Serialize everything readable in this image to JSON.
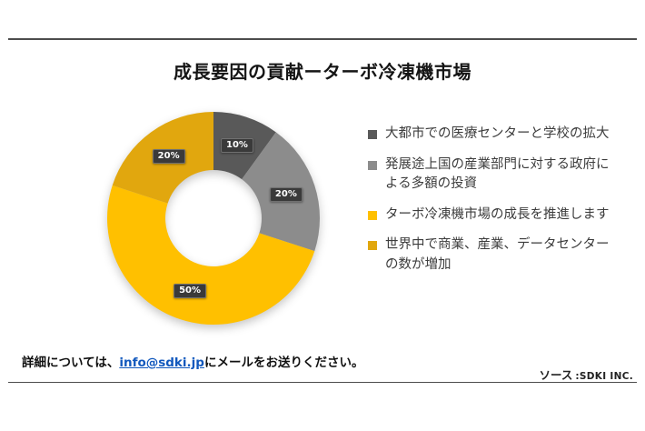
{
  "title": "成長要因の貢献ーターボ冷凍機市場",
  "chart_data": {
    "type": "pie",
    "subtype": "donut",
    "title": "成長要因の貢献ーターボ冷凍機市場",
    "labels": [
      "大都市での医療センターと学校の拡大",
      "発展途上国の産業部門に対する政府による多額の投資",
      "ターボ冷凍機市場の成長を推進します",
      "世界中で商業、産業、データセンターの数が増加"
    ],
    "values": [
      10,
      20,
      50,
      20
    ],
    "value_labels": [
      "10%",
      "20%",
      "50%",
      "20%"
    ],
    "colors": [
      "#595959",
      "#8C8C8C",
      "#FFC000",
      "#E1A70E"
    ],
    "start_angle_deg": 0,
    "direction": "clockwise",
    "donut_hole_ratio": 0.45,
    "legend_position": "right",
    "label_badge_color": "#3a3a3a",
    "label_text_color": "#ffffff"
  },
  "footer": {
    "prefix": "詳細については、",
    "email": "info@sdki.jp",
    "suffix": "にメールをお送りください。",
    "link_color": "#1158bd"
  },
  "source": {
    "label": "ソース",
    "value": ":SDKI INC."
  }
}
